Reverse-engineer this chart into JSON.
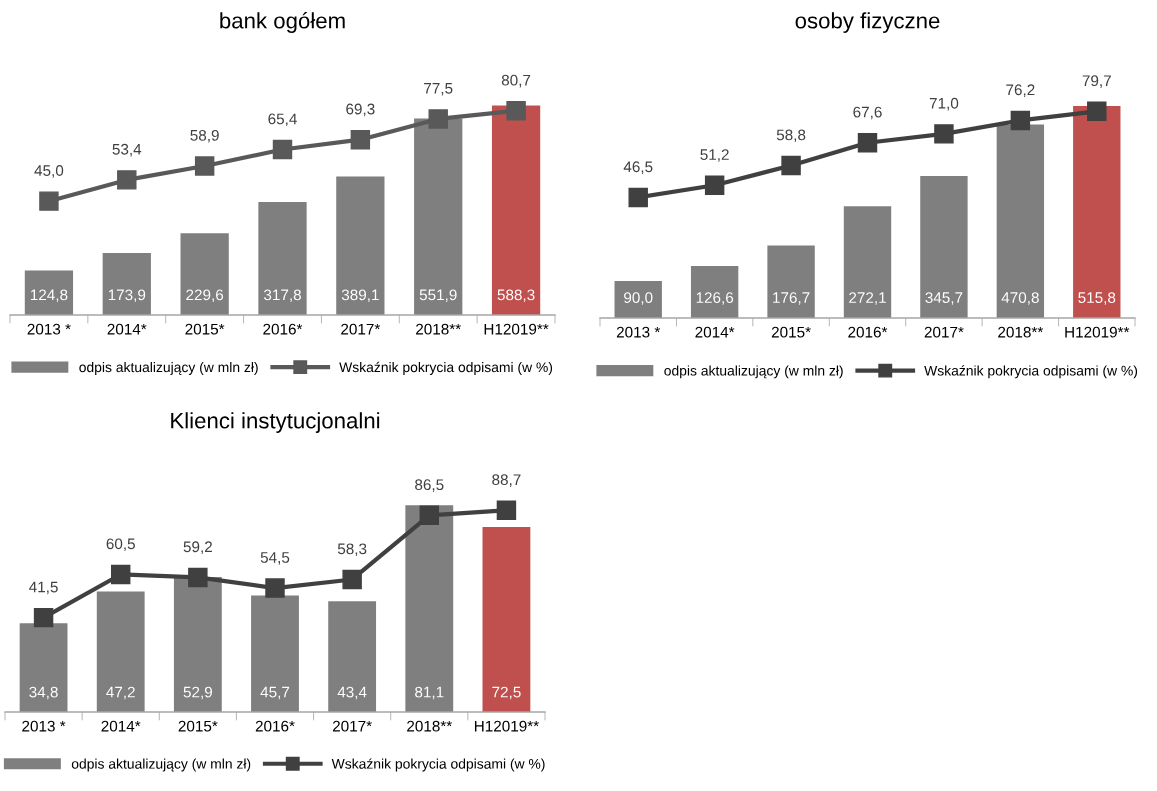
{
  "chart_data": [
    {
      "type": "bar",
      "title": "bank ogółem",
      "categories": [
        "2013 *",
        "2014*",
        "2015*",
        "2016*",
        "2017*",
        "2018**",
        "H12019**"
      ],
      "legend": "bottom",
      "marker": "square",
      "grid": false,
      "series": [
        {
          "name": "odpis aktualizujący (w mln zł)",
          "color": "#7f7f7f",
          "colors": [
            "#7f7f7f",
            "#7f7f7f",
            "#7f7f7f",
            "#7f7f7f",
            "#7f7f7f",
            "#7f7f7f",
            "#c0504d"
          ],
          "values": [
            124.8,
            173.9,
            229.6,
            317.8,
            389.1,
            551.9,
            588.3
          ],
          "value_labels": [
            "124,8",
            "173,9",
            "229,6",
            "317,8",
            "389,1",
            "551,9",
            "588,3"
          ]
        },
        {
          "name": "Wskaźnik pokrycia odpisami (w %)",
          "type": "line",
          "axis": "y2",
          "color": "#595959",
          "values": [
            45.0,
            53.4,
            58.9,
            65.4,
            69.3,
            77.5,
            80.7
          ],
          "value_labels": [
            "45,0",
            "53,4",
            "58,9",
            "65,4",
            "69,3",
            "77,5",
            "80,7"
          ]
        }
      ]
    },
    {
      "type": "bar",
      "title": "osoby fizyczne",
      "categories": [
        "2013 *",
        "2014*",
        "2015*",
        "2016*",
        "2017*",
        "2018**",
        "H12019**"
      ],
      "legend": "bottom",
      "marker": "square",
      "grid": false,
      "series": [
        {
          "name": "odpis aktualizujący (w mln zł)",
          "color": "#7f7f7f",
          "colors": [
            "#7f7f7f",
            "#7f7f7f",
            "#7f7f7f",
            "#7f7f7f",
            "#7f7f7f",
            "#7f7f7f",
            "#c0504d"
          ],
          "values": [
            90.0,
            126.6,
            176.7,
            272.1,
            345.7,
            470.8,
            515.8
          ],
          "value_labels": [
            "90,0",
            "126,6",
            "176,7",
            "272,1",
            "345,7",
            "470,8",
            "515,8"
          ]
        },
        {
          "name": "Wskaźnik pokrycia odpisami (w %)",
          "type": "line",
          "axis": "y2",
          "color": "#404040",
          "values": [
            46.5,
            51.2,
            58.8,
            67.6,
            71.0,
            76.2,
            79.7
          ],
          "value_labels": [
            "46,5",
            "51,2",
            "58,8",
            "67,6",
            "71,0",
            "76,2",
            "79,7"
          ]
        }
      ]
    },
    {
      "type": "bar",
      "title": "Klienci instytucjonalni",
      "categories": [
        "2013 *",
        "2014*",
        "2015*",
        "2016*",
        "2017*",
        "2018**",
        "H12019**"
      ],
      "legend": "bottom",
      "marker": "square",
      "grid": false,
      "series": [
        {
          "name": "odpis aktualizujący (w mln zł)",
          "color": "#7f7f7f",
          "colors": [
            "#7f7f7f",
            "#7f7f7f",
            "#7f7f7f",
            "#7f7f7f",
            "#7f7f7f",
            "#7f7f7f",
            "#c0504d"
          ],
          "values": [
            34.8,
            47.2,
            52.9,
            45.7,
            43.4,
            81.1,
            72.5
          ],
          "value_labels": [
            "34,8",
            "47,2",
            "52,9",
            "45,7",
            "43,4",
            "81,1",
            "72,5"
          ]
        },
        {
          "name": "Wskaźnik pokrycia odpisami (w %)",
          "type": "line",
          "axis": "y2",
          "color": "#404040",
          "values": [
            41.5,
            60.5,
            59.2,
            54.5,
            58.3,
            86.5,
            88.7
          ],
          "value_labels": [
            "41,5",
            "60,5",
            "59,2",
            "54,5",
            "58,3",
            "86,5",
            "88,7"
          ]
        }
      ]
    }
  ]
}
